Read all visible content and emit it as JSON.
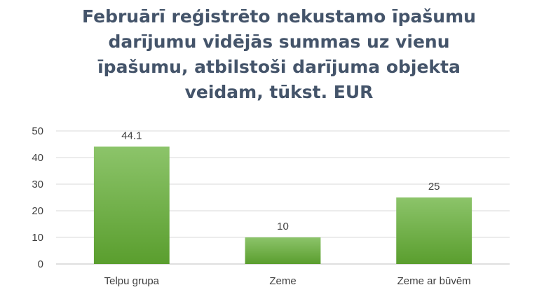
{
  "chart_data": {
    "type": "bar",
    "title_lines": [
      "Februārī reģistrēto nekustamo īpašumu",
      "darījumu vidējās summas uz vienu",
      "īpašumu, atbilstoši darījuma objekta",
      "veidam, tūkst. EUR"
    ],
    "categories": [
      "Telpu grupa",
      "Zeme",
      "Zeme ar būvēm"
    ],
    "values": [
      44.1,
      10,
      25
    ],
    "data_labels": [
      "44.1",
      "10",
      "25"
    ],
    "y_ticks": [
      "0",
      "10",
      "20",
      "30",
      "40",
      "50"
    ],
    "ylim": [
      0,
      50
    ],
    "xlabel": "",
    "ylabel": "",
    "grid": true,
    "legend": "none",
    "colors": {
      "bar_top": "#8cc46a",
      "bar_bottom": "#5a9e2e",
      "grid": "#d9d9d9",
      "axis": "#bfbfbf",
      "title": "#44546a",
      "text": "#404040"
    }
  }
}
